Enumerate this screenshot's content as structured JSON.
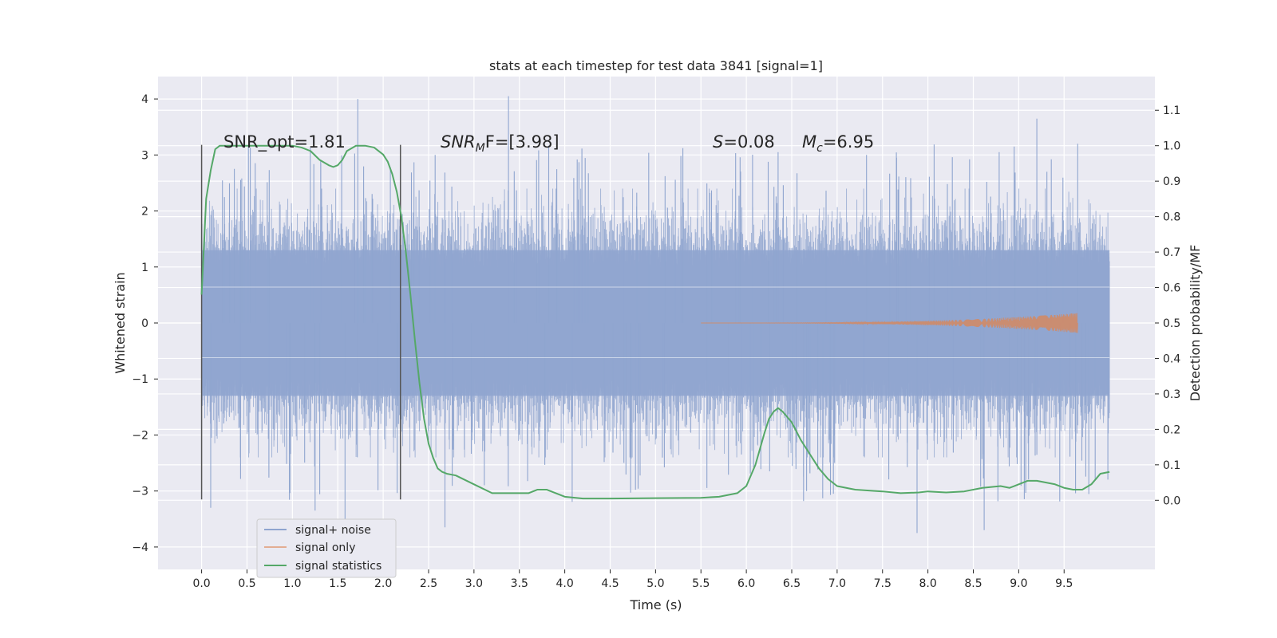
{
  "chart_data": {
    "type": "line",
    "title": "stats at each timestep for test data 3841 [signal=1]",
    "xlabel": "Time (s)",
    "ylabel_left": "Whitened strain",
    "ylabel_right": "Detection probability/MF",
    "xlim": [
      -0.48,
      10.5
    ],
    "ylim_left": [
      -4.4,
      4.4
    ],
    "ylim_right": [
      -0.195,
      1.195
    ],
    "x_ticks": [
      "0.0",
      "0.5",
      "1.0",
      "1.5",
      "2.0",
      "2.5",
      "3.0",
      "3.5",
      "4.0",
      "4.5",
      "5.0",
      "5.5",
      "6.0",
      "6.5",
      "7.0",
      "7.5",
      "8.0",
      "8.5",
      "9.0",
      "9.5"
    ],
    "x_tick_values": [
      0.0,
      0.5,
      1.0,
      1.5,
      2.0,
      2.5,
      3.0,
      3.5,
      4.0,
      4.5,
      5.0,
      5.5,
      6.0,
      6.5,
      7.0,
      7.5,
      8.0,
      8.5,
      9.0,
      9.5
    ],
    "y_left_ticks": [
      "4",
      "3",
      "2",
      "1",
      "0",
      "−1",
      "−2",
      "−3",
      "−4"
    ],
    "y_left_tick_values": [
      4,
      3,
      2,
      1,
      0,
      -1,
      -2,
      -3,
      -4
    ],
    "y_right_ticks": [
      "1.1",
      "1.0",
      "0.9",
      "0.8",
      "0.7",
      "0.6",
      "0.5",
      "0.4",
      "0.3",
      "0.2",
      "0.1",
      "0.0"
    ],
    "y_right_tick_values": [
      1.1,
      1.0,
      0.9,
      0.8,
      0.7,
      0.6,
      0.5,
      0.4,
      0.3,
      0.2,
      0.1,
      0.0
    ],
    "grid": true,
    "legend_position": "lower-left",
    "annotations": {
      "snr_opt": "SNR_opt=1.81",
      "snr_mf_main": "SNR",
      "snr_mf_sub": "M",
      "snr_mf_rest": "F=[3.98]",
      "s_var": "S",
      "s_val": "=0.08",
      "mc_var": "M",
      "mc_sub": "c",
      "mc_val": "=6.95"
    },
    "vertical_markers": [
      0.0,
      2.19
    ],
    "series": [
      {
        "name": "signal+ noise",
        "color": "#8fa5cf",
        "x_range": [
          0.0,
          10.0
        ],
        "envelope": [
          -1.3,
          1.3
        ],
        "spike_max": [
          4.0,
          4.05,
          3.65
        ],
        "spike_min": [
          -3.65,
          -3.75,
          -3.7
        ]
      },
      {
        "name": "signal only",
        "color": "#dd8452",
        "x_range": [
          5.5,
          9.65
        ],
        "peak_amplitude": 0.18
      },
      {
        "name": "signal statistics",
        "color": "#55a868",
        "axis": "right",
        "x": [
          0.0,
          0.05,
          0.1,
          0.15,
          0.2,
          0.3,
          0.5,
          0.7,
          0.9,
          1.0,
          1.1,
          1.2,
          1.3,
          1.4,
          1.45,
          1.5,
          1.55,
          1.6,
          1.7,
          1.8,
          1.9,
          2.0,
          2.05,
          2.1,
          2.15,
          2.2,
          2.25,
          2.3,
          2.35,
          2.4,
          2.45,
          2.5,
          2.55,
          2.6,
          2.65,
          2.7,
          2.8,
          3.0,
          3.2,
          3.4,
          3.6,
          3.7,
          3.8,
          4.0,
          4.2,
          4.5,
          5.0,
          5.5,
          5.7,
          5.8,
          5.9,
          6.0,
          6.1,
          6.2,
          6.25,
          6.3,
          6.35,
          6.4,
          6.5,
          6.6,
          6.7,
          6.8,
          6.9,
          7.0,
          7.2,
          7.5,
          7.7,
          7.9,
          8.0,
          8.2,
          8.4,
          8.6,
          8.8,
          8.9,
          9.0,
          9.1,
          9.2,
          9.4,
          9.5,
          9.6,
          9.7,
          9.8,
          9.9,
          10.0
        ],
        "y": [
          0.58,
          0.85,
          0.93,
          0.99,
          1.0,
          1.0,
          1.0,
          1.0,
          1.0,
          1.0,
          0.995,
          0.985,
          0.96,
          0.945,
          0.94,
          0.945,
          0.96,
          0.985,
          1.0,
          1.0,
          0.995,
          0.975,
          0.955,
          0.92,
          0.87,
          0.8,
          0.7,
          0.58,
          0.45,
          0.33,
          0.23,
          0.16,
          0.12,
          0.09,
          0.08,
          0.075,
          0.07,
          0.045,
          0.02,
          0.02,
          0.02,
          0.03,
          0.03,
          0.01,
          0.005,
          0.005,
          0.006,
          0.007,
          0.01,
          0.015,
          0.02,
          0.04,
          0.1,
          0.19,
          0.23,
          0.25,
          0.26,
          0.25,
          0.22,
          0.17,
          0.13,
          0.09,
          0.06,
          0.04,
          0.03,
          0.025,
          0.02,
          0.022,
          0.025,
          0.022,
          0.025,
          0.035,
          0.04,
          0.035,
          0.045,
          0.055,
          0.055,
          0.045,
          0.035,
          0.03,
          0.03,
          0.045,
          0.075,
          0.08
        ]
      }
    ]
  }
}
